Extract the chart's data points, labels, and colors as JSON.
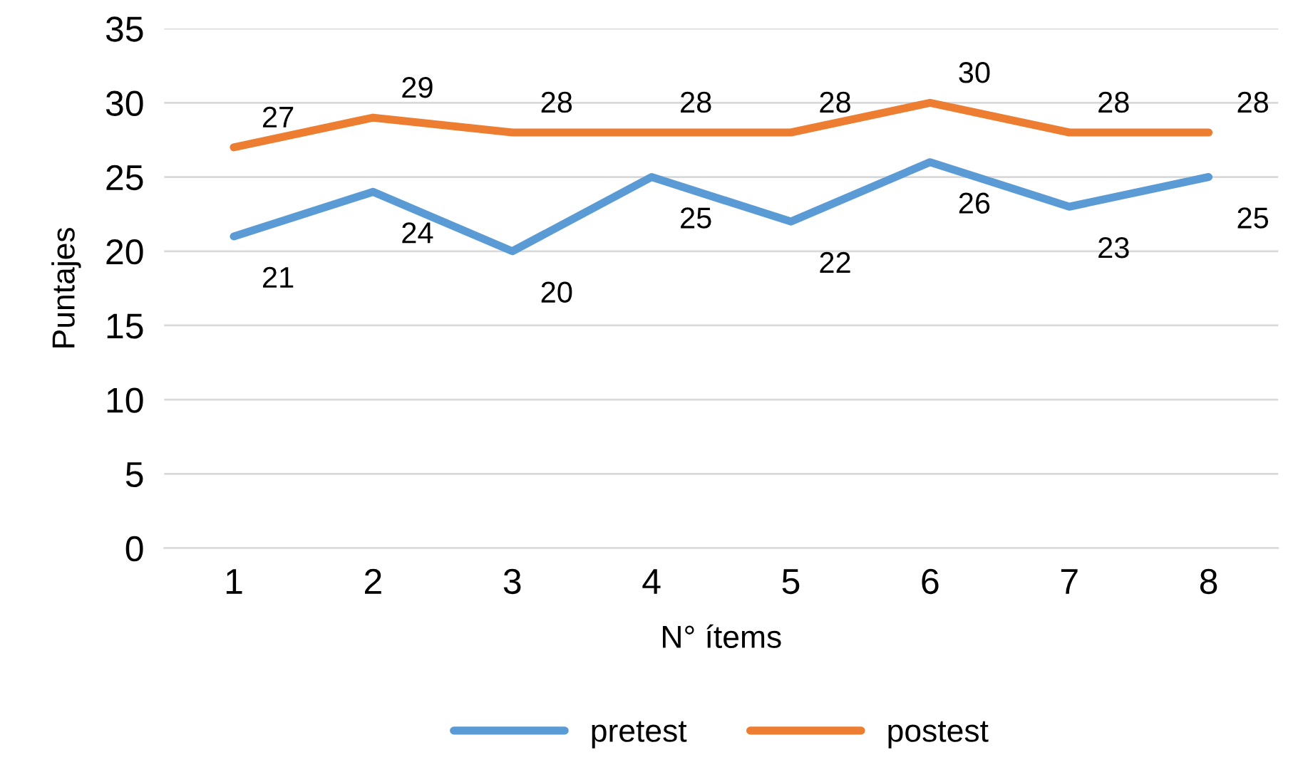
{
  "chart_data": {
    "type": "line",
    "xlabel": "N° ítems",
    "ylabel": "Puntajes",
    "categories": [
      "1",
      "2",
      "3",
      "4",
      "5",
      "6",
      "7",
      "8"
    ],
    "series": [
      {
        "name": "pretest",
        "color": "#5b9bd5",
        "values": [
          21,
          24,
          20,
          25,
          22,
          26,
          23,
          25
        ]
      },
      {
        "name": "postest",
        "color": "#ed7d31",
        "values": [
          27,
          29,
          28,
          28,
          28,
          30,
          28,
          28
        ]
      }
    ],
    "ylim": [
      0,
      35
    ],
    "yticks": [
      0,
      5,
      10,
      15,
      20,
      25,
      30,
      35
    ],
    "grid": "y",
    "legend": "bottom",
    "data_labels": true,
    "marker": "none",
    "line_style": "solid"
  }
}
